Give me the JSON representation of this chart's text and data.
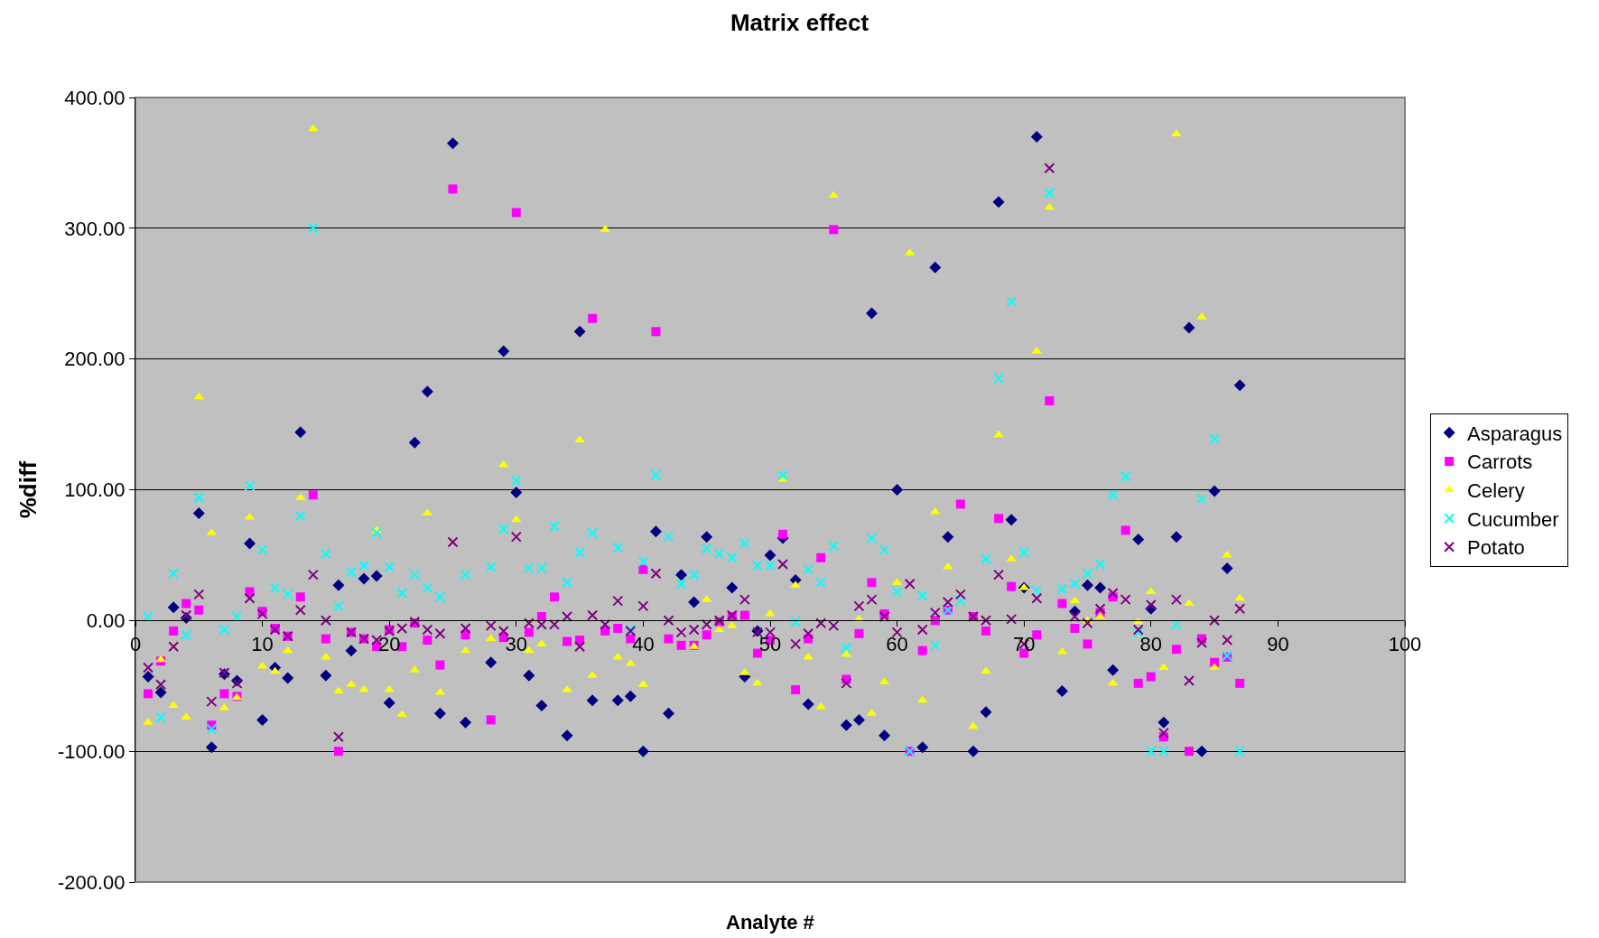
{
  "chart_data": {
    "type": "scatter",
    "title": "Matrix effect",
    "xlabel": "Analyte #",
    "ylabel": "%diff",
    "x": [
      1,
      2,
      3,
      4,
      5,
      6,
      7,
      8,
      9,
      10,
      11,
      12,
      13,
      14,
      15,
      16,
      17,
      18,
      19,
      20,
      21,
      22,
      23,
      24,
      25,
      26,
      27,
      28,
      29,
      30,
      31,
      32,
      33,
      34,
      35,
      36,
      37,
      38,
      39,
      40,
      41,
      42,
      43,
      44,
      45,
      46,
      47,
      48,
      49,
      50,
      51,
      52,
      53,
      54,
      55,
      56,
      57,
      58,
      59,
      60,
      61,
      62,
      63,
      64,
      65,
      66,
      67,
      68,
      69,
      70,
      71,
      72,
      73,
      74,
      75,
      76,
      77,
      78,
      79,
      80,
      81,
      82,
      83,
      84,
      85,
      86,
      87
    ],
    "series": [
      {
        "name": "Asparagus",
        "color": "#000080",
        "marker": "diamond",
        "values": [
          -43,
          -55,
          10,
          2,
          82,
          -97,
          -41,
          -46,
          59,
          -76,
          -36,
          -44,
          144,
          null,
          -42,
          27,
          -23,
          32,
          34,
          -63,
          null,
          136,
          175,
          -71,
          365,
          -78,
          null,
          -32,
          206,
          98,
          -42,
          -65,
          null,
          -88,
          221,
          -61,
          null,
          -61,
          -58,
          -100,
          68,
          -71,
          35,
          14,
          64,
          null,
          25,
          -43,
          -8,
          50,
          63,
          31,
          -64,
          null,
          null,
          -80,
          -76,
          235,
          -88,
          100,
          null,
          -97,
          270,
          64,
          null,
          -100,
          -70,
          320,
          77,
          25,
          370,
          null,
          -54,
          7,
          27,
          25,
          -38,
          null,
          62,
          9,
          -78,
          64,
          224,
          -100,
          99,
          40,
          180
        ]
      },
      {
        "name": "Carrots",
        "color": "#ff00ff",
        "marker": "square",
        "values": [
          -56,
          -31,
          -8,
          13,
          8,
          -80,
          -56,
          -58,
          22,
          7,
          -6,
          -12,
          18,
          96,
          -14,
          -100,
          -9,
          -14,
          -20,
          -7,
          -20,
          -2,
          -15,
          -34,
          330,
          -11,
          null,
          -76,
          -13,
          312,
          -9,
          3,
          18,
          -16,
          -15,
          231,
          -8,
          -6,
          -14,
          39,
          221,
          -14,
          -19,
          -19,
          -11,
          -1,
          3,
          4,
          -25,
          -15,
          66,
          -53,
          -14,
          48,
          299,
          -45,
          -10,
          29,
          5,
          null,
          -100,
          -23,
          0,
          8,
          89,
          3,
          -8,
          78,
          26,
          -25,
          -11,
          168,
          13,
          -6,
          -18,
          6,
          18,
          69,
          -48,
          -43,
          -89,
          -22,
          -100,
          -14,
          -32,
          -28,
          -48
        ]
      },
      {
        "name": "Celery",
        "color": "#ffff00",
        "marker": "triangle",
        "values": [
          -78,
          -30,
          -65,
          -74,
          171,
          67,
          -67,
          -59,
          79,
          -35,
          -39,
          -23,
          94,
          376,
          -28,
          -54,
          -49,
          -53,
          69,
          -53,
          -72,
          -38,
          82,
          -55,
          null,
          -23,
          null,
          -14,
          119,
          77,
          -23,
          -18,
          null,
          -53,
          138,
          -42,
          299,
          -28,
          -33,
          -49,
          null,
          null,
          null,
          -20,
          16,
          -7,
          -4,
          -40,
          -48,
          5,
          108,
          27,
          -28,
          -66,
          325,
          -26,
          1,
          -71,
          -47,
          29,
          281,
          -61,
          83,
          41,
          null,
          -81,
          -39,
          142,
          47,
          25,
          206,
          316,
          -24,
          15,
          0,
          3,
          -48,
          null,
          -1,
          22,
          -36,
          372,
          13,
          232,
          -36,
          50,
          17
        ]
      },
      {
        "name": "Cucumber",
        "color": "#00ffff",
        "marker": "cross",
        "values": [
          3,
          -74,
          36,
          -11,
          94,
          -83,
          -7,
          3,
          103,
          54,
          25,
          20,
          80,
          300,
          51,
          11,
          37,
          42,
          67,
          41,
          21,
          35,
          25,
          18,
          null,
          35,
          null,
          41,
          70,
          107,
          40,
          40,
          72,
          29,
          52,
          67,
          null,
          56,
          -7,
          45,
          111,
          64,
          28,
          35,
          55,
          51,
          48,
          59,
          42,
          42,
          111,
          -1,
          39,
          29,
          57,
          -21,
          null,
          63,
          54,
          22,
          -100,
          19,
          -19,
          8,
          15,
          null,
          47,
          185,
          244,
          52,
          23,
          327,
          24,
          28,
          36,
          43,
          96,
          110,
          -9,
          -100,
          -100,
          -3,
          null,
          93,
          139,
          -27,
          -100
        ]
      },
      {
        "name": "Potato",
        "color": "#800080",
        "marker": "cross",
        "values": [
          -36,
          -49,
          -20,
          4,
          20,
          -62,
          -40,
          -48,
          17,
          5,
          -7,
          -12,
          8,
          35,
          0,
          -89,
          -9,
          -14,
          -15,
          -8,
          -6,
          -1,
          -7,
          -10,
          60,
          -6,
          null,
          -4,
          -8,
          64,
          -2,
          -3,
          -3,
          3,
          -20,
          4,
          -3,
          15,
          -8,
          11,
          36,
          0,
          -9,
          -7,
          -3,
          0,
          4,
          16,
          -9,
          -9,
          43,
          -18,
          -10,
          -2,
          -4,
          -48,
          11,
          16,
          3,
          -9,
          28,
          -7,
          6,
          14,
          20,
          3,
          0,
          35,
          1,
          -18,
          17,
          346,
          null,
          3,
          -2,
          9,
          21,
          16,
          -7,
          12,
          -86,
          16,
          -46,
          -17,
          0,
          -15,
          9
        ]
      }
    ],
    "xlim": [
      0,
      100
    ],
    "xticks": [
      0,
      10,
      20,
      30,
      40,
      50,
      60,
      70,
      80,
      90,
      100
    ],
    "ylim": [
      -200,
      400
    ],
    "yticks": [
      {
        "value": -200,
        "label": "-200.00"
      },
      {
        "value": -100,
        "label": "-100.00"
      },
      {
        "value": 0,
        "label": "0.00"
      },
      {
        "value": 100,
        "label": "100.00"
      },
      {
        "value": 200,
        "label": "200.00"
      },
      {
        "value": 300,
        "label": "300.00"
      },
      {
        "value": 400,
        "label": "400.00"
      }
    ],
    "grid": "y",
    "legend": "right"
  }
}
